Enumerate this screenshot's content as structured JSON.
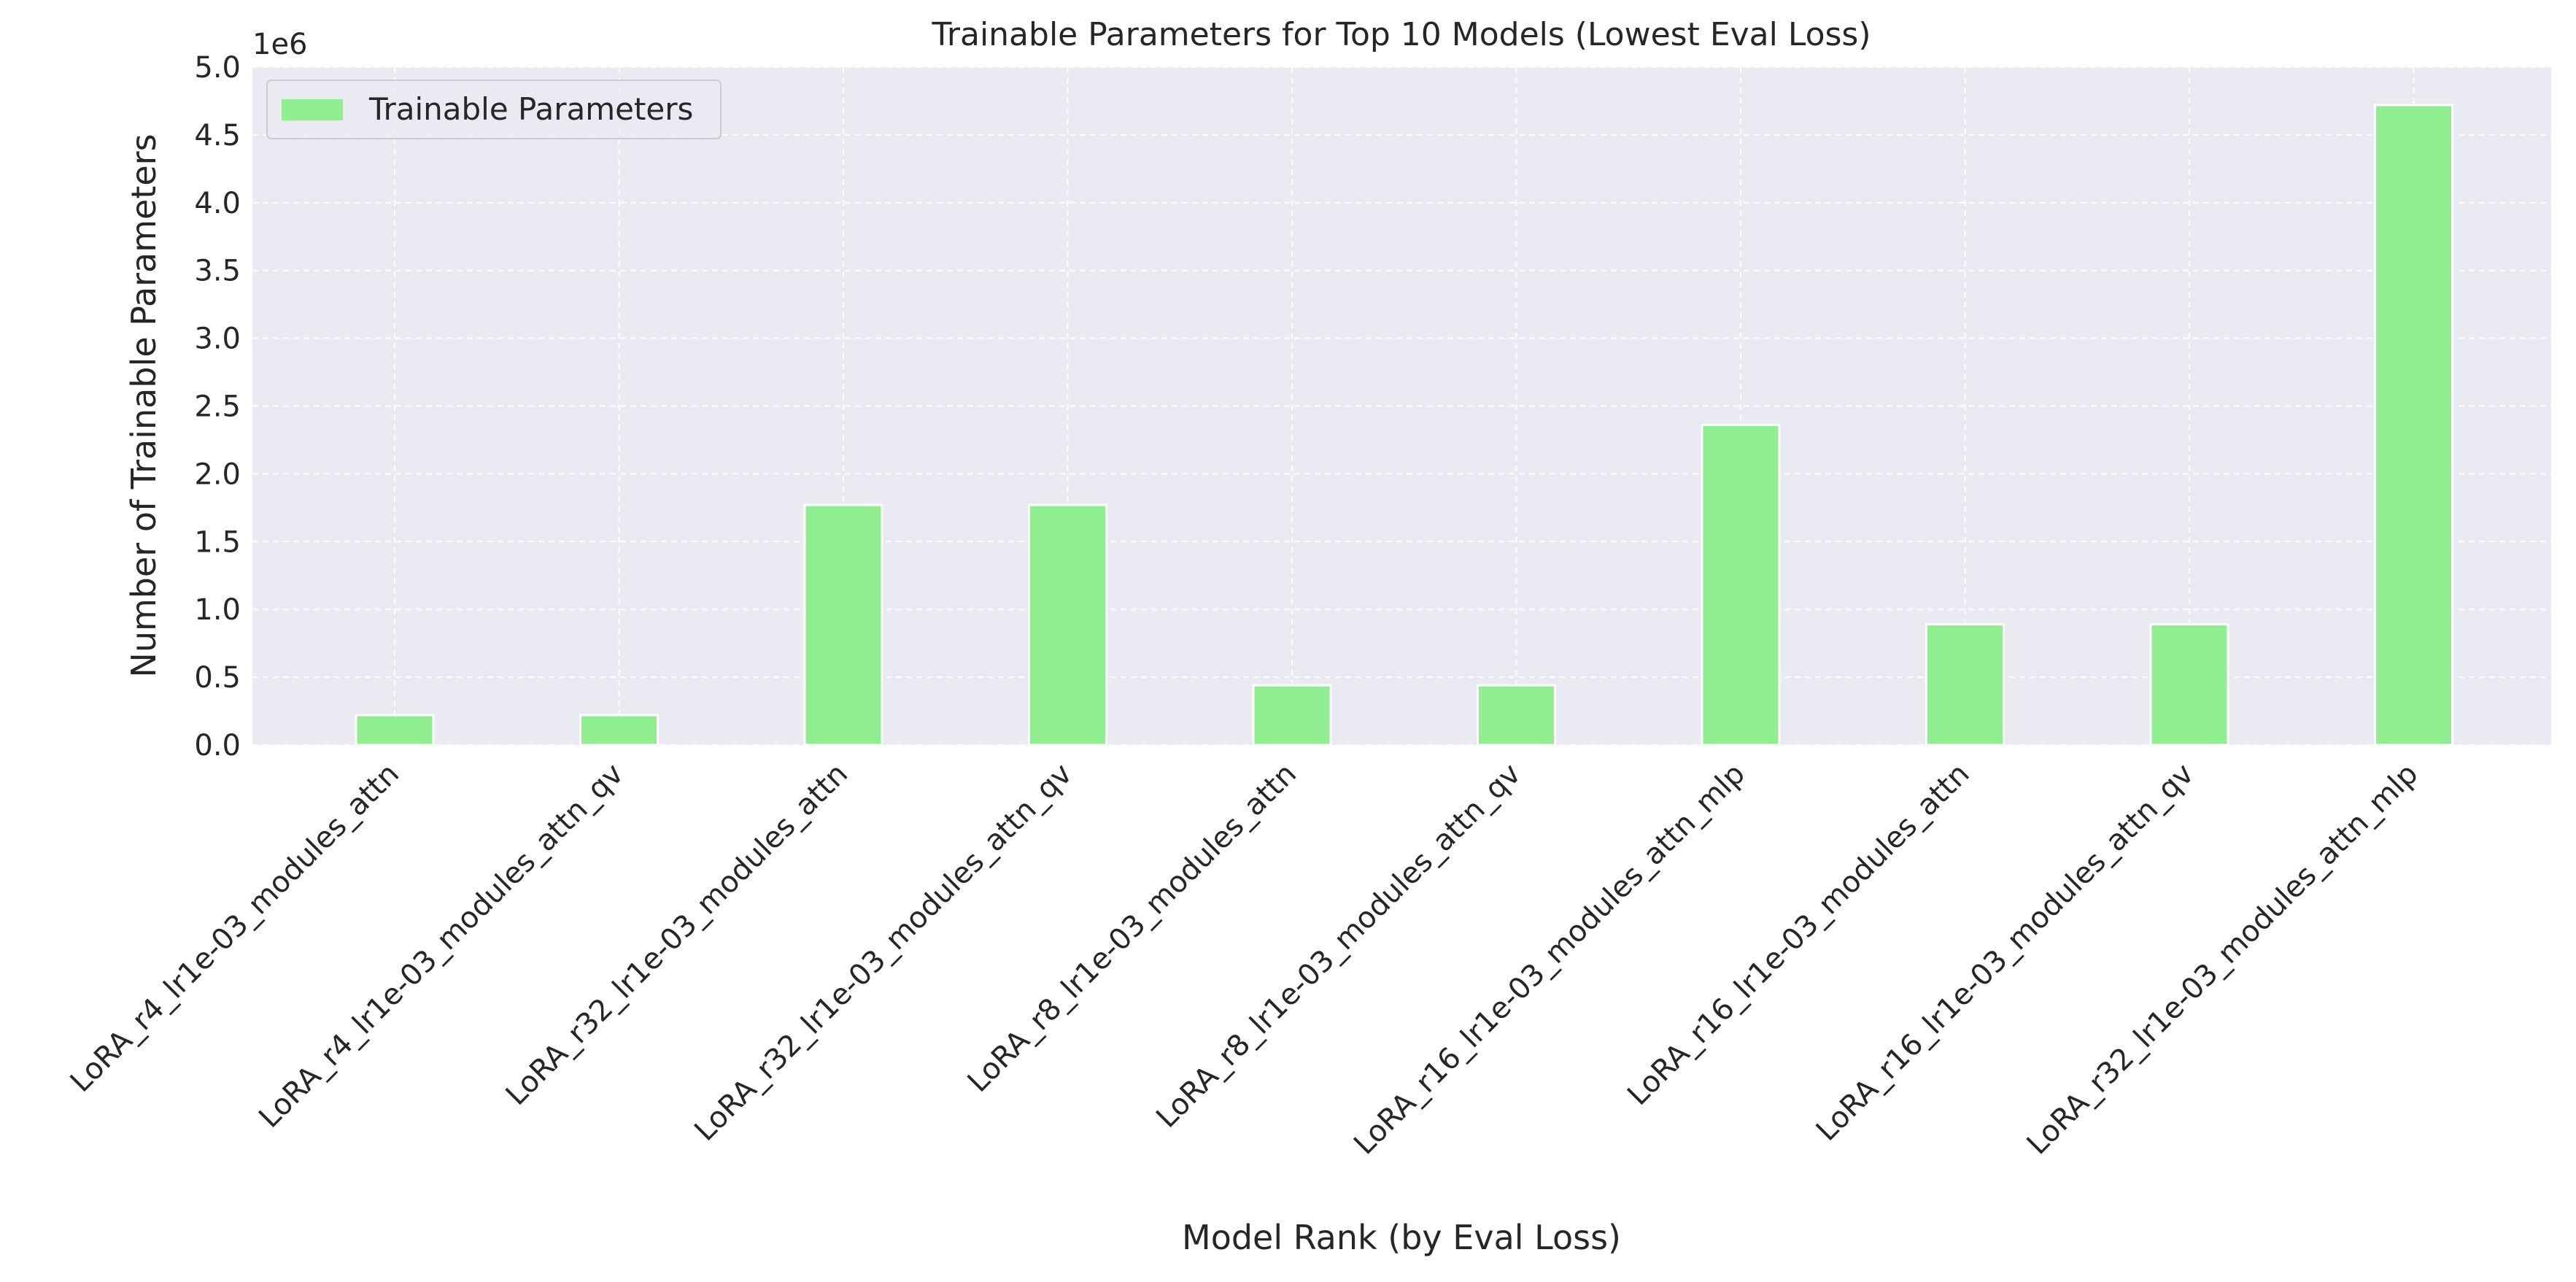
{
  "chart_data": {
    "type": "bar",
    "title": "Trainable Parameters for Top 10 Models (Lowest Eval Loss)",
    "xlabel": "Model Rank (by Eval Loss)",
    "ylabel": "Number of Trainable Parameters",
    "y_offset_label": "1e6",
    "categories": [
      "LoRA_r4_lr1e-03_modules_attn",
      "LoRA_r4_lr1e-03_modules_attn_qv",
      "LoRA_r32_lr1e-03_modules_attn",
      "LoRA_r32_lr1e-03_modules_attn_qv",
      "LoRA_r8_lr1e-03_modules_attn",
      "LoRA_r8_lr1e-03_modules_attn_qv",
      "LoRA_r16_lr1e-03_modules_attn_mlp",
      "LoRA_r16_lr1e-03_modules_attn",
      "LoRA_r16_lr1e-03_modules_attn_qv",
      "LoRA_r32_lr1e-03_modules_attn_mlp"
    ],
    "series": [
      {
        "name": "Trainable Parameters",
        "color": "#90ee90",
        "values": [
          0.22,
          0.22,
          1.77,
          1.77,
          0.44,
          0.44,
          2.36,
          0.89,
          0.89,
          4.72
        ]
      }
    ],
    "ylim": [
      0,
      5.0
    ],
    "yticks": [
      "0.0",
      "0.5",
      "1.0",
      "1.5",
      "2.0",
      "2.5",
      "3.0",
      "3.5",
      "4.0",
      "4.5",
      "5.0"
    ],
    "grid": true,
    "legend_position": "upper left",
    "background_color": "#eaeaf2",
    "grid_color": "#ffffff"
  }
}
